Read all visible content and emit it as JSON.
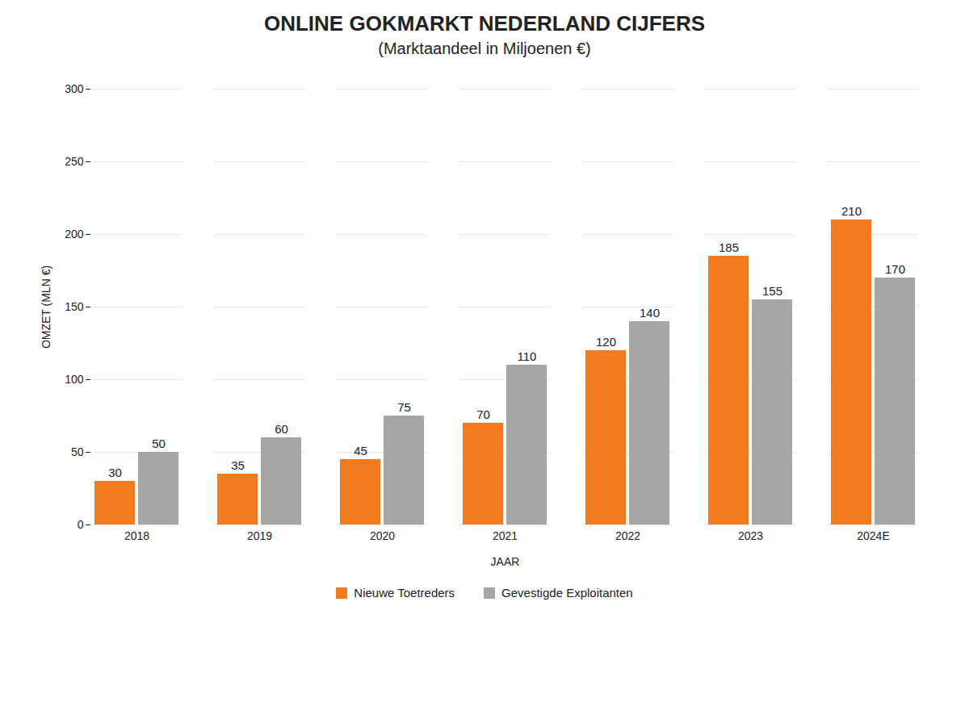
{
  "chart_data": {
    "type": "bar",
    "title": "ONLINE GOKMARKT NEDERLAND CIJFERS",
    "subtitle": "(Marktaandeel in Miljoenen €)",
    "x_label": "JAAR",
    "y_label": "OMZET (MLN €)",
    "categories": [
      "2018",
      "2019",
      "2020",
      "2021",
      "2022",
      "2023",
      "2024E"
    ],
    "series": [
      {
        "name": "Nieuwe Toetreders",
        "color": "#f47b1f",
        "values": [
          30,
          35,
          45,
          70,
          120,
          185,
          210
        ]
      },
      {
        "name": "Gevestigde Exploitanten",
        "color": "#a6a6a6",
        "values": [
          50,
          60,
          75,
          110,
          140,
          155,
          170
        ]
      }
    ],
    "ylim": [
      0,
      300
    ],
    "yticks": [
      0,
      50,
      100,
      150,
      200,
      250,
      300
    ],
    "grid": true,
    "data_labels": true,
    "legend": "bottom"
  }
}
